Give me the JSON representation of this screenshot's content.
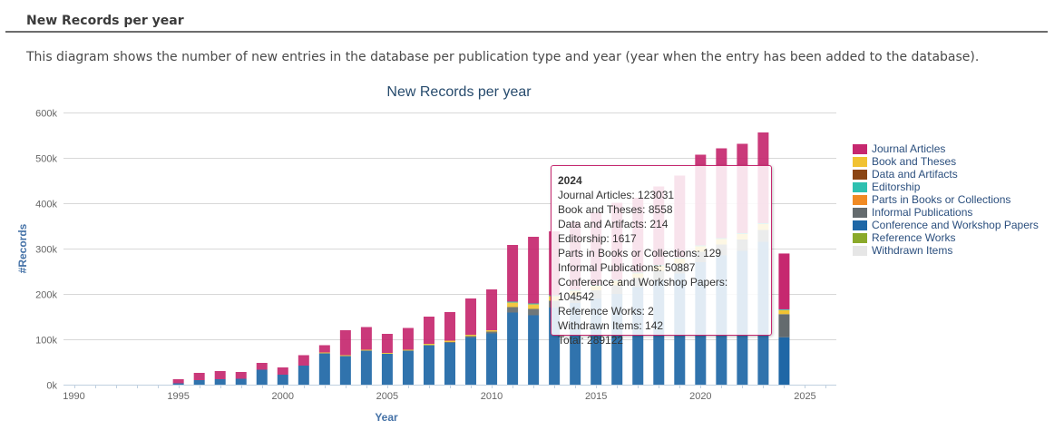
{
  "header": {
    "title": "New Records per year"
  },
  "description": "This diagram shows the number of new entries in the database per publication type and year (year when the entry has been added to the database).",
  "colors": {
    "journal": "#c6286f",
    "books": "#f1c232",
    "data": "#8b4513",
    "editorship": "#2ec0b0",
    "parts": "#f08a24",
    "informal": "#646b6e",
    "conference": "#1e67a6",
    "reference": "#8aa92a",
    "withdrawn": "#e6e6e6",
    "axis_text": "#666666",
    "axis_title": "#4572a7",
    "title": "#274b6d"
  },
  "chart_data": {
    "type": "bar",
    "stacked": true,
    "title": "New Records per year",
    "xlabel": "Year",
    "ylabel": "#Records",
    "xlim": [
      1989.5,
      2026.5
    ],
    "ylim": [
      0,
      600000
    ],
    "grid": true,
    "legend_position": "right",
    "x_ticks": [
      1990,
      1995,
      2000,
      2005,
      2010,
      2015,
      2020,
      2025
    ],
    "y_ticks": [
      {
        "value": 0,
        "label": "0k"
      },
      {
        "value": 100000,
        "label": "100k"
      },
      {
        "value": 200000,
        "label": "200k"
      },
      {
        "value": 300000,
        "label": "300k"
      },
      {
        "value": 400000,
        "label": "400k"
      },
      {
        "value": 500000,
        "label": "500k"
      },
      {
        "value": 600000,
        "label": "600k"
      }
    ],
    "categories": [
      1995,
      1996,
      1997,
      1998,
      1999,
      2000,
      2001,
      2002,
      2003,
      2004,
      2005,
      2006,
      2007,
      2008,
      2009,
      2010,
      2011,
      2012,
      2013,
      2014,
      2015,
      2016,
      2017,
      2018,
      2019,
      2020,
      2021,
      2022,
      2023,
      2024
    ],
    "series": [
      {
        "name": "Conference and Workshop Papers",
        "key": "conference",
        "values": [
          3000,
          10000,
          12000,
          13000,
          33000,
          22000,
          42000,
          69000,
          63000,
          75000,
          68000,
          75000,
          87000,
          92000,
          104000,
          113000,
          159000,
          153000,
          170000,
          180000,
          190000,
          200000,
          215000,
          230000,
          245000,
          270000,
          285000,
          295000,
          315000,
          104542
        ]
      },
      {
        "name": "Informal Publications",
        "key": "informal",
        "values": [
          0,
          0,
          0,
          0,
          0,
          0,
          0,
          0,
          0,
          0,
          0,
          0,
          0,
          2000,
          3000,
          4000,
          12000,
          14000,
          15000,
          17000,
          18000,
          19000,
          20000,
          21000,
          22000,
          23000,
          24000,
          25000,
          26000,
          50887
        ]
      },
      {
        "name": "Book and Theses",
        "key": "books",
        "values": [
          0,
          0,
          0,
          0,
          0,
          0,
          0,
          2000,
          2000,
          2000,
          2000,
          2000,
          3000,
          3000,
          3000,
          3000,
          10000,
          10000,
          10000,
          10000,
          10000,
          10000,
          10000,
          11000,
          11000,
          12000,
          12000,
          12000,
          13000,
          8558
        ]
      },
      {
        "name": "Data and Artifacts",
        "key": "data",
        "values": [
          0,
          0,
          0,
          0,
          0,
          0,
          0,
          0,
          0,
          0,
          0,
          0,
          0,
          0,
          0,
          0,
          0,
          0,
          0,
          0,
          0,
          0,
          0,
          0,
          0,
          0,
          0,
          0,
          0,
          214
        ]
      },
      {
        "name": "Editorship",
        "key": "editorship",
        "values": [
          0,
          0,
          0,
          0,
          0,
          0,
          0,
          0,
          0,
          0,
          0,
          0,
          0,
          0,
          0,
          0,
          2000,
          2000,
          2000,
          2000,
          2000,
          2000,
          2000,
          2000,
          2000,
          2000,
          2000,
          2000,
          2000,
          1617
        ]
      },
      {
        "name": "Parts in Books or Collections",
        "key": "parts",
        "values": [
          0,
          0,
          0,
          0,
          0,
          0,
          0,
          0,
          0,
          0,
          0,
          0,
          0,
          0,
          0,
          0,
          0,
          0,
          0,
          0,
          0,
          0,
          0,
          0,
          0,
          0,
          0,
          0,
          0,
          129
        ]
      },
      {
        "name": "Reference Works",
        "key": "reference",
        "values": [
          0,
          0,
          0,
          0,
          0,
          0,
          0,
          0,
          0,
          0,
          0,
          0,
          0,
          0,
          0,
          0,
          0,
          0,
          0,
          0,
          0,
          0,
          0,
          0,
          0,
          0,
          0,
          0,
          0,
          2
        ]
      },
      {
        "name": "Withdrawn Items",
        "key": "withdrawn",
        "values": [
          0,
          0,
          0,
          0,
          0,
          0,
          0,
          0,
          0,
          0,
          0,
          0,
          0,
          0,
          0,
          0,
          0,
          0,
          0,
          0,
          0,
          0,
          0,
          0,
          0,
          0,
          0,
          0,
          0,
          142
        ]
      },
      {
        "name": "Journal Articles",
        "key": "journal",
        "values": [
          9000,
          16000,
          18000,
          15000,
          15000,
          16000,
          23000,
          16000,
          55000,
          50000,
          42000,
          48000,
          60000,
          63000,
          80000,
          90000,
          125000,
          147000,
          141000,
          150000,
          160000,
          170000,
          165000,
          173000,
          181000,
          200000,
          198000,
          197000,
          200000,
          123031
        ]
      }
    ],
    "legend_order": [
      "Journal Articles",
      "Book and Theses",
      "Data and Artifacts",
      "Editorship",
      "Parts in Books or Collections",
      "Informal Publications",
      "Conference and Workshop Papers",
      "Reference Works",
      "Withdrawn Items"
    ]
  },
  "legend": [
    {
      "label": "Journal Articles",
      "color": "#c6286f"
    },
    {
      "label": "Book and Theses",
      "color": "#f1c232"
    },
    {
      "label": "Data and Artifacts",
      "color": "#8b4513"
    },
    {
      "label": "Editorship",
      "color": "#2ec0b0"
    },
    {
      "label": "Parts in Books or Collections",
      "color": "#f08a24"
    },
    {
      "label": "Informal Publications",
      "color": "#646b6e"
    },
    {
      "label": "Conference and Workshop Papers",
      "color": "#1e67a6"
    },
    {
      "label": "Reference Works",
      "color": "#8aa92a"
    },
    {
      "label": "Withdrawn Items",
      "color": "#e6e6e6"
    }
  ],
  "tooltip": {
    "year": 2024,
    "title": "2024",
    "lines": [
      "Journal Articles: 123031",
      "Book and Theses: 8558",
      "Data and Artifacts: 214",
      "Editorship: 1617",
      "Parts in Books or Collections: 129",
      "Informal Publications: 50887",
      "Conference and Workshop Papers: 104542",
      "Reference Works: 2",
      "Withdrawn Items: 142",
      "Total: 289122"
    ]
  }
}
